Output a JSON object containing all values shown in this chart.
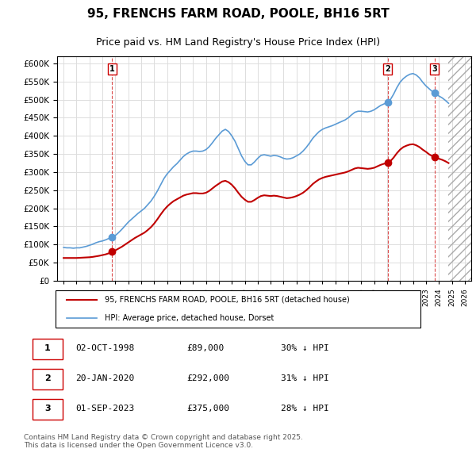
{
  "title": "95, FRENCHS FARM ROAD, POOLE, BH16 5RT",
  "subtitle": "Price paid vs. HM Land Registry's House Price Index (HPI)",
  "legend_label_red": "95, FRENCHS FARM ROAD, POOLE, BH16 5RT (detached house)",
  "legend_label_blue": "HPI: Average price, detached house, Dorset",
  "footer": "Contains HM Land Registry data © Crown copyright and database right 2025.\nThis data is licensed under the Open Government Licence v3.0.",
  "transactions": [
    {
      "label": "1",
      "date": "02-OCT-1998",
      "price": 89000,
      "pct": "30% ↓ HPI",
      "x_val": 1998.75
    },
    {
      "label": "2",
      "date": "20-JAN-2020",
      "price": 292000,
      "pct": "31% ↓ HPI",
      "x_val": 2020.05
    },
    {
      "label": "3",
      "date": "01-SEP-2023",
      "price": 375000,
      "pct": "28% ↓ HPI",
      "x_val": 2023.66
    }
  ],
  "ylim": [
    0,
    620000
  ],
  "xlim": [
    1994.5,
    2026.5
  ],
  "hpi_color": "#5b9bd5",
  "price_color": "#c00000",
  "marker_color_red": "#c00000",
  "marker_color_blue": "#5b9bd5",
  "grid_color": "#dddddd",
  "background_color": "#ffffff",
  "hpi_data_x": [
    1995.0,
    1995.25,
    1995.5,
    1995.75,
    1996.0,
    1996.25,
    1996.5,
    1996.75,
    1997.0,
    1997.25,
    1997.5,
    1997.75,
    1998.0,
    1998.25,
    1998.5,
    1998.75,
    1999.0,
    1999.25,
    1999.5,
    1999.75,
    2000.0,
    2000.25,
    2000.5,
    2000.75,
    2001.0,
    2001.25,
    2001.5,
    2001.75,
    2002.0,
    2002.25,
    2002.5,
    2002.75,
    2003.0,
    2003.25,
    2003.5,
    2003.75,
    2004.0,
    2004.25,
    2004.5,
    2004.75,
    2005.0,
    2005.25,
    2005.5,
    2005.75,
    2006.0,
    2006.25,
    2006.5,
    2006.75,
    2007.0,
    2007.25,
    2007.5,
    2007.75,
    2008.0,
    2008.25,
    2008.5,
    2008.75,
    2009.0,
    2009.25,
    2009.5,
    2009.75,
    2010.0,
    2010.25,
    2010.5,
    2010.75,
    2011.0,
    2011.25,
    2011.5,
    2011.75,
    2012.0,
    2012.25,
    2012.5,
    2012.75,
    2013.0,
    2013.25,
    2013.5,
    2013.75,
    2014.0,
    2014.25,
    2014.5,
    2014.75,
    2015.0,
    2015.25,
    2015.5,
    2015.75,
    2016.0,
    2016.25,
    2016.5,
    2016.75,
    2017.0,
    2017.25,
    2017.5,
    2017.75,
    2018.0,
    2018.25,
    2018.5,
    2018.75,
    2019.0,
    2019.25,
    2019.5,
    2019.75,
    2020.0,
    2020.25,
    2020.5,
    2020.75,
    2021.0,
    2021.25,
    2021.5,
    2021.75,
    2022.0,
    2022.25,
    2022.5,
    2022.75,
    2023.0,
    2023.25,
    2023.5,
    2023.75,
    2024.0,
    2024.25,
    2024.5,
    2024.75
  ],
  "hpi_data_y": [
    92000,
    91000,
    91000,
    90000,
    91000,
    91000,
    93000,
    95000,
    98000,
    101000,
    105000,
    108000,
    110000,
    113000,
    117000,
    120000,
    125000,
    133000,
    142000,
    152000,
    162000,
    170000,
    178000,
    186000,
    193000,
    200000,
    210000,
    220000,
    233000,
    248000,
    265000,
    282000,
    295000,
    305000,
    315000,
    323000,
    333000,
    343000,
    350000,
    355000,
    358000,
    358000,
    357000,
    358000,
    362000,
    370000,
    381000,
    393000,
    403000,
    413000,
    418000,
    412000,
    400000,
    385000,
    365000,
    345000,
    330000,
    320000,
    320000,
    328000,
    338000,
    346000,
    348000,
    346000,
    344000,
    346000,
    345000,
    342000,
    338000,
    336000,
    337000,
    340000,
    345000,
    350000,
    358000,
    368000,
    380000,
    393000,
    403000,
    412000,
    418000,
    422000,
    425000,
    428000,
    432000,
    436000,
    440000,
    444000,
    450000,
    458000,
    465000,
    468000,
    468000,
    467000,
    466000,
    468000,
    472000,
    478000,
    484000,
    488000,
    492000,
    500000,
    515000,
    533000,
    548000,
    558000,
    565000,
    570000,
    572000,
    568000,
    560000,
    548000,
    538000,
    530000,
    522000,
    516000,
    510000,
    505000,
    498000,
    490000
  ],
  "price_data_x": [
    1995.0,
    1995.25,
    1995.5,
    1995.75,
    1996.0,
    1996.25,
    1996.5,
    1996.75,
    1997.0,
    1997.25,
    1997.5,
    1997.75,
    1998.0,
    1998.25,
    1998.5,
    1998.75,
    1999.0,
    1999.25,
    1999.5,
    1999.75,
    2000.0,
    2000.25,
    2000.5,
    2000.75,
    2001.0,
    2001.25,
    2001.5,
    2001.75,
    2002.0,
    2002.25,
    2002.5,
    2002.75,
    2003.0,
    2003.25,
    2003.5,
    2003.75,
    2004.0,
    2004.25,
    2004.5,
    2004.75,
    2005.0,
    2005.25,
    2005.5,
    2005.75,
    2006.0,
    2006.25,
    2006.5,
    2006.75,
    2007.0,
    2007.25,
    2007.5,
    2007.75,
    2008.0,
    2008.25,
    2008.5,
    2008.75,
    2009.0,
    2009.25,
    2009.5,
    2009.75,
    2010.0,
    2010.25,
    2010.5,
    2010.75,
    2011.0,
    2011.25,
    2011.5,
    2011.75,
    2012.0,
    2012.25,
    2012.5,
    2012.75,
    2013.0,
    2013.25,
    2013.5,
    2013.75,
    2014.0,
    2014.25,
    2014.5,
    2014.75,
    2015.0,
    2015.25,
    2015.5,
    2015.75,
    2016.0,
    2016.25,
    2016.5,
    2016.75,
    2017.0,
    2017.25,
    2017.5,
    2017.75,
    2018.0,
    2018.25,
    2018.5,
    2018.75,
    2019.0,
    2019.25,
    2019.5,
    2019.75,
    2020.0,
    2020.25,
    2020.5,
    2020.75,
    2021.0,
    2021.25,
    2021.5,
    2021.75,
    2022.0,
    2022.25,
    2022.5,
    2022.75,
    2023.0,
    2023.25,
    2023.5,
    2023.75,
    2024.0,
    2024.25,
    2024.5,
    2024.75
  ],
  "price_data_y": [
    63000,
    63000,
    63000,
    63000,
    63000,
    63500,
    64000,
    64500,
    65000,
    66000,
    67500,
    69000,
    71000,
    73000,
    76000,
    80000,
    84000,
    89000,
    94000,
    100000,
    106000,
    112000,
    118000,
    123000,
    128000,
    133000,
    140000,
    148000,
    158000,
    170000,
    183000,
    195000,
    205000,
    213000,
    220000,
    225000,
    230000,
    235000,
    238000,
    240000,
    242000,
    242000,
    241000,
    241000,
    243000,
    248000,
    255000,
    262000,
    268000,
    274000,
    276000,
    272000,
    265000,
    255000,
    243000,
    232000,
    224000,
    218000,
    218000,
    223000,
    229000,
    234000,
    236000,
    235000,
    234000,
    235000,
    234000,
    232000,
    230000,
    228000,
    229000,
    231000,
    234000,
    238000,
    243000,
    250000,
    258000,
    267000,
    274000,
    280000,
    284000,
    287000,
    289000,
    291000,
    293000,
    295000,
    297000,
    299000,
    302000,
    306000,
    310000,
    312000,
    311000,
    310000,
    309000,
    310000,
    312000,
    316000,
    320000,
    323000,
    325000,
    330000,
    340000,
    352000,
    362000,
    369000,
    373000,
    376000,
    377000,
    374000,
    369000,
    362000,
    356000,
    349000,
    344000,
    340000,
    337000,
    334000,
    330000,
    325000
  ]
}
